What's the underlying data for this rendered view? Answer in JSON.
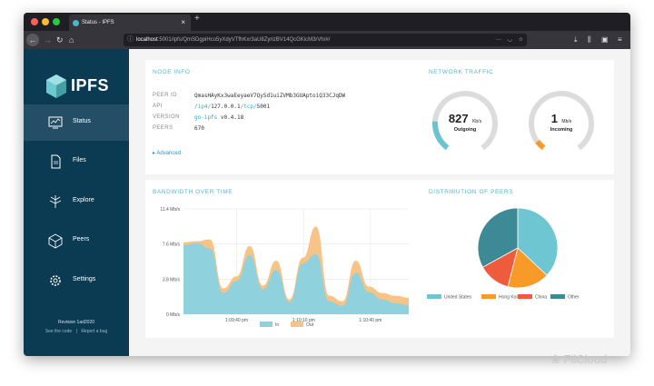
{
  "browser": {
    "tab_title": "Status - IPFS",
    "tab_close": "×",
    "new_tab": "+",
    "url_host": "localhost",
    "url_rest": ":5001/ipfs/QmSDgpiHco5yXdyVTfhKxr3aU8ZyrizBV14QcGKicM3rVh/#/",
    "colors": {
      "close": "#fe5f57",
      "minimize": "#febc2e",
      "maximize": "#28c840"
    }
  },
  "sidebar": {
    "logo_text": "IPFS",
    "items": [
      {
        "label": "Status",
        "icon": "status-monitor-icon",
        "active": true
      },
      {
        "label": "Files",
        "icon": "files-icon",
        "active": false
      },
      {
        "label": "Explore",
        "icon": "explore-tree-icon",
        "active": false
      },
      {
        "label": "Peers",
        "icon": "peers-cube-icon",
        "active": false
      },
      {
        "label": "Settings",
        "icon": "settings-gear-icon",
        "active": false
      }
    ],
    "revision": "Revision 1ad2020",
    "see_code": "See the code",
    "separator": "|",
    "report_bug": "Report a bug"
  },
  "node_info": {
    "title": "NODE INFO",
    "rows": [
      {
        "key": "PEER ID",
        "value": "QmasHAyKx3waEeyaeV7QySd1uiZVMb3GUAptoiQ33CJqDW"
      },
      {
        "key": "API",
        "value_parts": [
          "/ip4/",
          "127.0.0.1",
          "/tcp/",
          "5001"
        ]
      },
      {
        "key": "VERSION",
        "value_link": "go-ipfs",
        "value": "v0.4.18"
      },
      {
        "key": "PEERS",
        "value": "670"
      }
    ],
    "advanced": "Advanced"
  },
  "network_traffic": {
    "title": "NETWORK TRAFFIC",
    "outgoing": {
      "value": "827",
      "unit": "Kb/s",
      "label": "Outgoing",
      "fraction": 0.2
    },
    "incoming": {
      "value": "1",
      "unit": "Mb/s",
      "label": "Incoming",
      "fraction": 0.06
    }
  },
  "bandwidth": {
    "title": "BANDWIDTH OVER TIME",
    "chart_data": {
      "type": "area",
      "y_ticks": [
        "11.4 Mb/s",
        "7.6 Mb/s",
        "3.8 Mb/s",
        "0 Mb/s"
      ],
      "ylim": [
        0,
        11.4
      ],
      "x_ticks": [
        "1:09:40 pm",
        "1:10:10 pm",
        "1:10:40 pm"
      ],
      "x_tick_positions": [
        0.236,
        0.534,
        0.83
      ],
      "legend_position": "bottom",
      "series": [
        {
          "name": "In",
          "color": "#8fd1dc",
          "values": [
            7.5,
            7.7,
            7.1,
            2.3,
            3.6,
            6.4,
            2.7,
            4.8,
            1.3,
            5.5,
            6.5,
            1.4,
            0.9,
            4.5,
            2.4,
            1.6,
            1.2,
            1.0
          ]
        },
        {
          "name": "Out",
          "color": "#f8c386",
          "values": [
            7.8,
            7.9,
            8.1,
            2.8,
            4.1,
            7.4,
            3.1,
            5.8,
            1.6,
            6.1,
            9.5,
            2.0,
            1.4,
            5.8,
            3.0,
            2.3,
            2.0,
            1.8
          ]
        }
      ]
    }
  },
  "distribution": {
    "title": "DISTRIBUTION OF PEERS",
    "chart_data": {
      "type": "pie",
      "legend_position": "bottom",
      "slices": [
        {
          "label": "United States",
          "value": 37,
          "color": "#6fc6d3"
        },
        {
          "label": "Hong Kong",
          "value": 17,
          "color": "#f79a28"
        },
        {
          "label": "China",
          "value": 13,
          "color": "#ee5b3d"
        },
        {
          "label": "Other",
          "value": 33,
          "color": "#3d8a96"
        }
      ]
    }
  },
  "watermark": "FilCloud"
}
